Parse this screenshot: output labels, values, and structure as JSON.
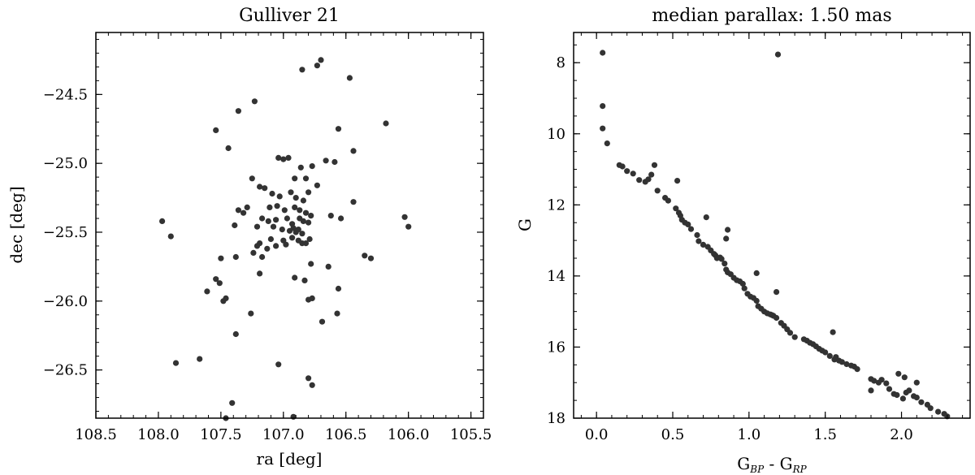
{
  "style": {
    "marker_color": "#333333",
    "axis_color": "#000000",
    "background": "#ffffff"
  },
  "chart_data": [
    {
      "type": "scatter",
      "title": "Gulliver 21",
      "xlabel": "ra [deg]",
      "ylabel": "dec [deg]",
      "xlim": [
        108.5,
        105.4
      ],
      "ylim": [
        -26.85,
        -24.05
      ],
      "x_inverted": true,
      "grid": false,
      "xticks": [
        108.5,
        108.0,
        107.5,
        107.0,
        106.5,
        106.0,
        105.5
      ],
      "xtick_labels": [
        "108.5",
        "108.0",
        "107.5",
        "107.0",
        "106.5",
        "106.0",
        "105.5"
      ],
      "yticks": [
        -24.5,
        -25.0,
        -25.5,
        -26.0,
        -26.5
      ],
      "ytick_labels": [
        "−24.5",
        "−25.0",
        "−25.5",
        "−26.0",
        "−26.5"
      ],
      "series": [
        {
          "x": [
            106.7,
            106.85,
            106.73,
            106.47,
            107.23,
            107.36,
            106.18,
            107.54,
            106.56,
            107.44,
            106.44,
            106.66,
            106.59,
            107.04,
            107.0,
            106.96,
            106.86,
            106.77,
            107.25,
            106.82,
            106.91,
            107.19,
            106.73,
            107.15,
            107.09,
            107.03,
            106.94,
            106.9,
            106.8,
            106.84,
            106.44,
            107.29,
            107.11,
            107.05,
            106.99,
            106.91,
            106.87,
            106.82,
            106.78,
            107.36,
            107.32,
            107.17,
            107.12,
            107.06,
            106.97,
            106.93,
            106.87,
            106.84,
            106.8,
            107.97,
            106.62,
            106.54,
            106.03,
            106.0,
            107.39,
            107.21,
            107.08,
            107.01,
            106.95,
            106.92,
            106.9,
            106.88,
            106.85,
            107.9,
            107.19,
            107.1,
            107.0,
            106.93,
            106.88,
            106.82,
            106.79,
            107.21,
            107.13,
            107.06,
            106.98,
            106.85,
            106.3,
            106.35,
            107.24,
            107.17,
            107.38,
            107.5,
            106.78,
            106.64,
            107.19,
            106.91,
            107.54,
            107.51,
            106.83,
            107.61,
            106.56,
            106.77,
            107.46,
            107.48,
            106.8,
            107.26,
            106.57,
            106.69,
            107.38,
            107.86,
            107.67,
            107.04,
            106.8,
            106.77,
            107.41,
            106.92,
            107.46
          ],
          "y": [
            -24.25,
            -24.32,
            -24.29,
            -24.38,
            -24.55,
            -24.62,
            -24.71,
            -24.76,
            -24.75,
            -24.89,
            -24.91,
            -24.98,
            -24.99,
            -24.96,
            -24.97,
            -24.96,
            -25.03,
            -25.02,
            -25.11,
            -25.11,
            -25.11,
            -25.17,
            -25.16,
            -25.18,
            -25.22,
            -25.24,
            -25.21,
            -25.25,
            -25.21,
            -25.27,
            -25.28,
            -25.32,
            -25.32,
            -25.31,
            -25.34,
            -25.32,
            -25.34,
            -25.36,
            -25.38,
            -25.34,
            -25.36,
            -25.4,
            -25.42,
            -25.41,
            -25.4,
            -25.44,
            -25.4,
            -25.42,
            -25.43,
            -25.42,
            -25.38,
            -25.4,
            -25.39,
            -25.46,
            -25.45,
            -25.46,
            -25.46,
            -25.48,
            -25.49,
            -25.47,
            -25.5,
            -25.48,
            -25.51,
            -25.53,
            -25.58,
            -25.55,
            -25.56,
            -25.54,
            -25.56,
            -25.58,
            -25.55,
            -25.6,
            -25.62,
            -25.6,
            -25.59,
            -25.58,
            -25.69,
            -25.67,
            -25.65,
            -25.68,
            -25.68,
            -25.69,
            -25.73,
            -25.75,
            -25.8,
            -25.83,
            -25.84,
            -25.87,
            -25.85,
            -25.93,
            -25.91,
            -25.98,
            -25.98,
            -26.0,
            -25.99,
            -26.09,
            -26.09,
            -26.15,
            -26.24,
            -26.45,
            -26.42,
            -26.46,
            -26.56,
            -26.61,
            -26.74,
            -26.84,
            -26.85
          ]
        }
      ]
    },
    {
      "type": "scatter",
      "title": "median parallax: 1.50 mas",
      "xlabel_main": "G",
      "xlabel_sub1": "BP",
      "xlabel_mid": " - G",
      "xlabel_sub2": "RP",
      "ylabel": "G",
      "xlim": [
        -0.15,
        2.45
      ],
      "ylim": [
        18.0,
        7.15
      ],
      "y_inverted": true,
      "grid": false,
      "xticks": [
        0.0,
        0.5,
        1.0,
        1.5,
        2.0
      ],
      "xtick_labels": [
        "0.0",
        "0.5",
        "1.0",
        "1.5",
        "2.0"
      ],
      "yticks": [
        8,
        10,
        12,
        14,
        16,
        18
      ],
      "ytick_labels": [
        "8",
        "10",
        "12",
        "14",
        "16",
        "18"
      ],
      "series": [
        {
          "x": [
            0.04,
            1.19,
            0.04,
            0.04,
            0.07,
            0.15,
            0.17,
            0.2,
            0.24,
            0.28,
            0.32,
            0.34,
            0.36,
            0.38,
            0.4,
            0.45,
            0.47,
            0.52,
            0.54,
            0.55,
            0.56,
            0.58,
            0.6,
            0.62,
            0.66,
            0.67,
            0.7,
            0.73,
            0.75,
            0.77,
            0.78,
            0.79,
            0.81,
            0.82,
            0.84,
            0.85,
            0.86,
            0.88,
            0.9,
            0.92,
            0.94,
            0.96,
            0.97,
            0.99,
            1.01,
            1.03,
            1.05,
            1.06,
            1.08,
            1.1,
            1.12,
            1.14,
            1.15,
            1.16,
            1.18,
            1.21,
            1.23,
            1.25,
            1.27,
            1.3,
            1.36,
            1.38,
            1.4,
            1.42,
            1.44,
            1.46,
            1.48,
            1.5,
            1.53,
            1.56,
            1.57,
            1.59,
            1.61,
            1.64,
            1.67,
            1.69,
            1.71,
            1.8,
            1.82,
            1.85,
            1.87,
            1.9,
            1.92,
            1.95,
            1.97,
            2.01,
            2.03,
            2.05,
            2.08,
            2.1,
            2.13,
            2.17,
            2.19,
            2.24,
            2.28,
            2.3,
            0.86,
            1.05,
            1.18,
            1.55,
            1.98,
            2.02,
            2.1,
            1.8,
            0.72,
            0.85,
            0.53
          ],
          "y": [
            7.72,
            7.77,
            9.22,
            9.85,
            10.27,
            10.88,
            10.92,
            11.05,
            11.12,
            11.3,
            11.35,
            11.28,
            11.15,
            10.88,
            11.6,
            11.8,
            11.88,
            12.1,
            12.22,
            12.3,
            12.42,
            12.5,
            12.55,
            12.68,
            12.85,
            13.02,
            13.12,
            13.18,
            13.28,
            13.38,
            13.42,
            13.5,
            13.48,
            13.52,
            13.65,
            13.82,
            13.9,
            13.95,
            14.05,
            14.12,
            14.15,
            14.22,
            14.35,
            14.5,
            14.58,
            14.62,
            14.7,
            14.85,
            14.92,
            15.0,
            15.05,
            15.08,
            15.1,
            15.12,
            15.18,
            15.32,
            15.4,
            15.5,
            15.6,
            15.72,
            15.78,
            15.82,
            15.88,
            15.92,
            15.98,
            16.05,
            16.1,
            16.15,
            16.25,
            16.35,
            16.28,
            16.38,
            16.42,
            16.48,
            16.52,
            16.55,
            16.62,
            16.9,
            16.95,
            17.0,
            16.92,
            17.02,
            17.18,
            17.32,
            17.35,
            17.45,
            17.28,
            17.22,
            17.38,
            17.42,
            17.55,
            17.62,
            17.72,
            17.82,
            17.88,
            17.95,
            12.7,
            13.92,
            14.45,
            15.58,
            16.75,
            16.85,
            17.0,
            17.22,
            12.35,
            12.95,
            11.32
          ]
        }
      ]
    }
  ]
}
